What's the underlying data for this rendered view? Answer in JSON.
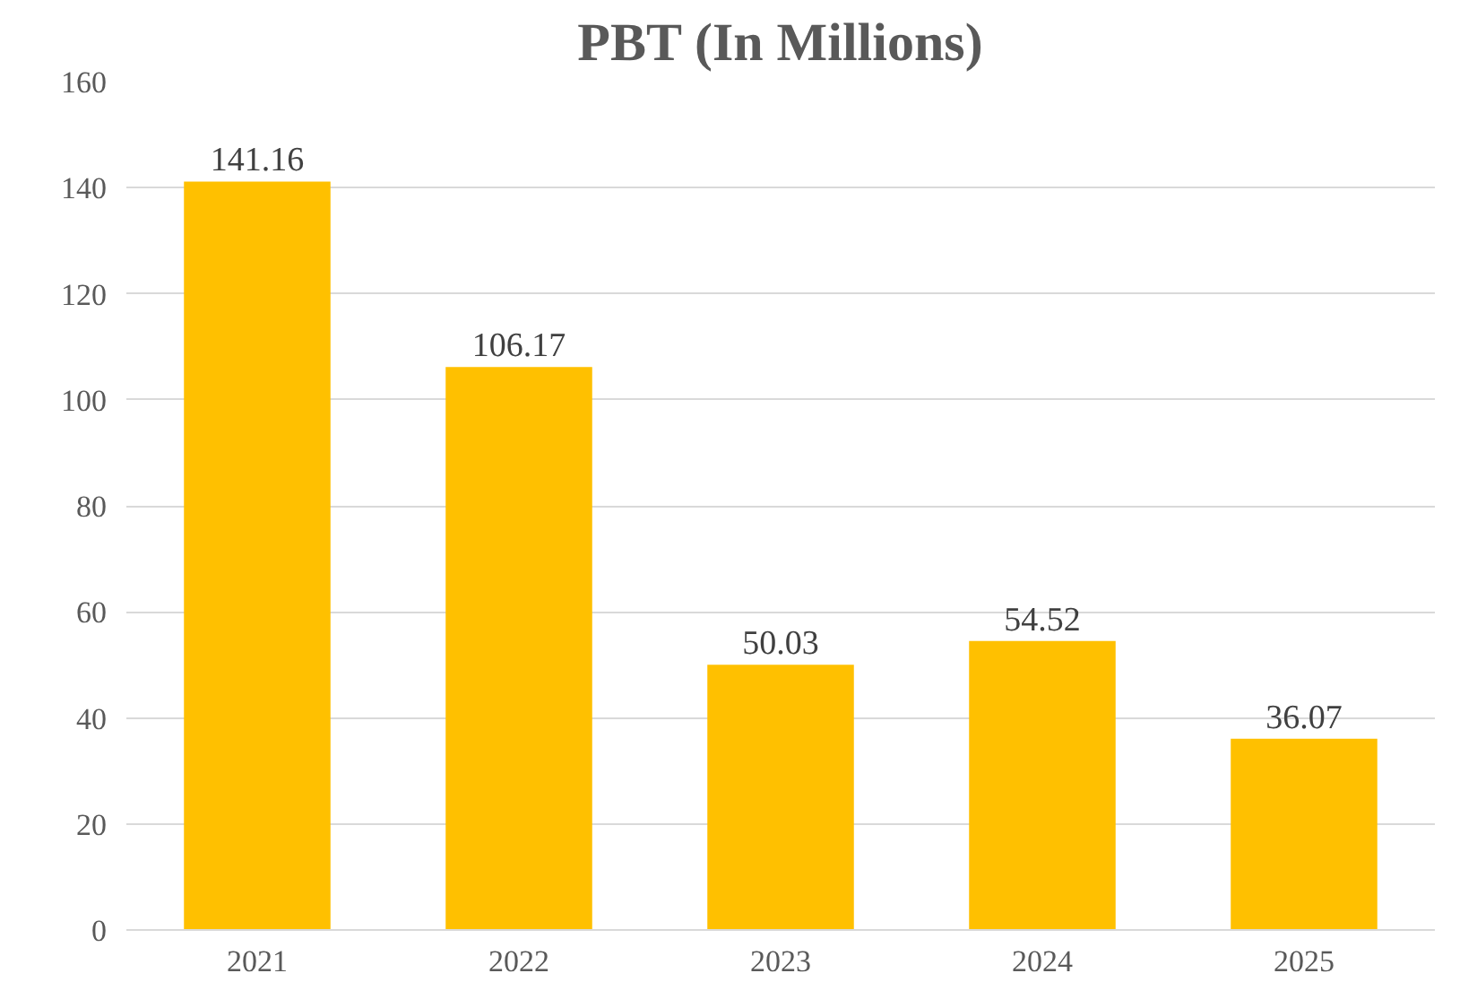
{
  "chart_data": {
    "type": "bar",
    "title": "PBT (In Millions)",
    "categories": [
      "2021",
      "2022",
      "2023",
      "2024",
      "2025"
    ],
    "values": [
      141.16,
      106.17,
      50.03,
      54.52,
      36.07
    ],
    "color": "#ffc000",
    "ylim": [
      0,
      160
    ],
    "yticks": [
      0,
      20,
      40,
      60,
      80,
      100,
      120,
      140,
      160
    ],
    "grid": "y",
    "data_labels": true
  }
}
